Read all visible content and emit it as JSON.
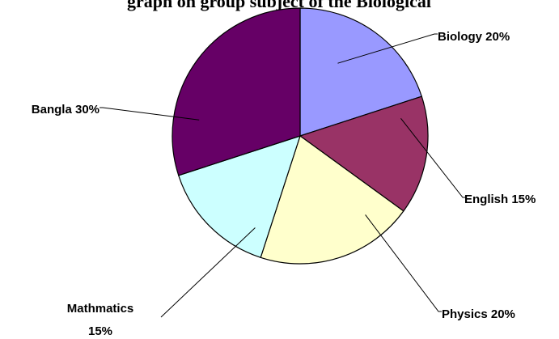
{
  "chart_data": {
    "type": "pie",
    "title": "graph on group subject of the Biological",
    "start_at": "12 o'clock",
    "direction": "clockwise",
    "slices": [
      {
        "name": "Biology",
        "value": 20,
        "label": "Biology 20%",
        "color": "#9999ff"
      },
      {
        "name": "English",
        "value": 15,
        "label": "English 15%",
        "color": "#993366"
      },
      {
        "name": "Physics",
        "value": 20,
        "label": "Physics 20%",
        "color": "#ffffcc"
      },
      {
        "name": "Mathmatics",
        "value": 15,
        "label_lines": [
          "Mathmatics",
          "15%"
        ],
        "color": "#ccffff"
      },
      {
        "name": "Bangla",
        "value": 30,
        "label": "Bangla 30%",
        "color": "#660066"
      }
    ]
  }
}
